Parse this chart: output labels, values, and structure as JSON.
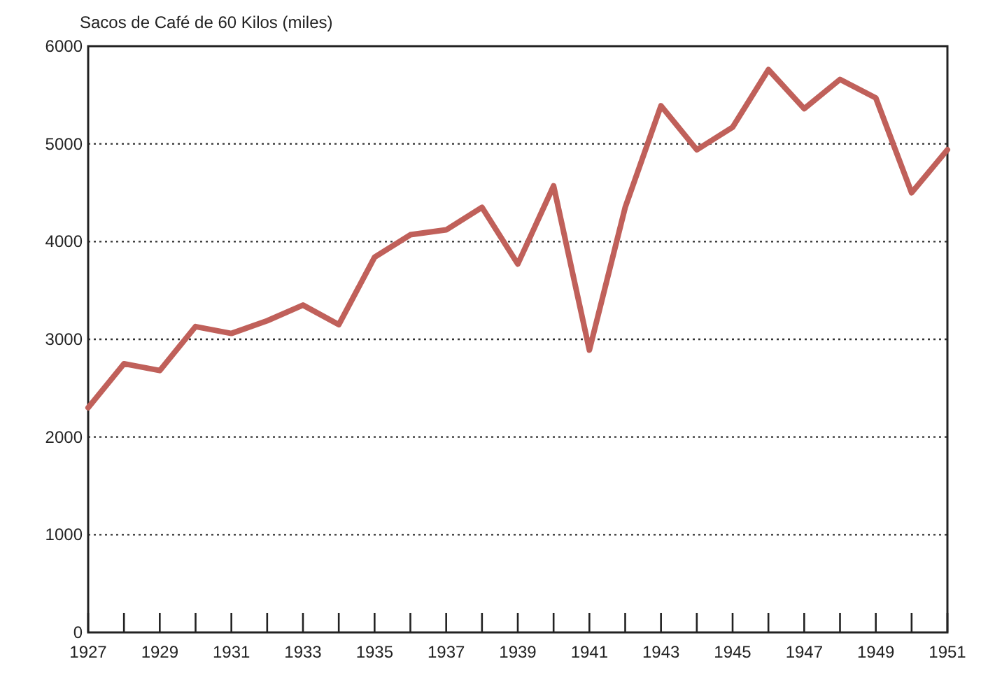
{
  "chart_data": {
    "type": "line",
    "ylabel": "Sacos de Café de 60 Kilos (miles)",
    "x": [
      1927,
      1928,
      1929,
      1930,
      1931,
      1932,
      1933,
      1934,
      1935,
      1936,
      1937,
      1938,
      1939,
      1940,
      1941,
      1942,
      1943,
      1944,
      1945,
      1946,
      1947,
      1948,
      1949,
      1950,
      1951
    ],
    "series": [
      {
        "color": "#c0605a",
        "values": [
          2300,
          2750,
          2680,
          3130,
          3060,
          3190,
          3350,
          3150,
          3840,
          4070,
          4120,
          4350,
          3770,
          4570,
          2890,
          4350,
          5390,
          4940,
          5170,
          5760,
          5360,
          5660,
          5470,
          4500,
          4940
        ]
      }
    ],
    "xlim": [
      1927,
      1951
    ],
    "xticks": [
      1927,
      {
        "value": 1928,
        "label": null
      },
      1929,
      {
        "value": 1930,
        "label": null
      },
      1931,
      {
        "value": 1932,
        "label": null
      },
      1933,
      {
        "value": 1934,
        "label": null
      },
      1935,
      {
        "value": 1936,
        "label": null
      },
      1937,
      {
        "value": 1938,
        "label": null
      },
      1939,
      {
        "value": 1940,
        "label": null
      },
      1941,
      {
        "value": 1942,
        "label": null
      },
      1943,
      {
        "value": 1944,
        "label": null
      },
      1945,
      {
        "value": 1946,
        "label": null
      },
      1947,
      {
        "value": 1948,
        "label": null
      },
      1949,
      {
        "value": 1950,
        "label": null
      },
      1951
    ],
    "ylim": [
      0,
      6000
    ],
    "yticks": [
      0,
      1000,
      2000,
      3000,
      4000,
      5000,
      6000
    ],
    "grid": "y",
    "marker": "none",
    "line_style": "solid"
  }
}
